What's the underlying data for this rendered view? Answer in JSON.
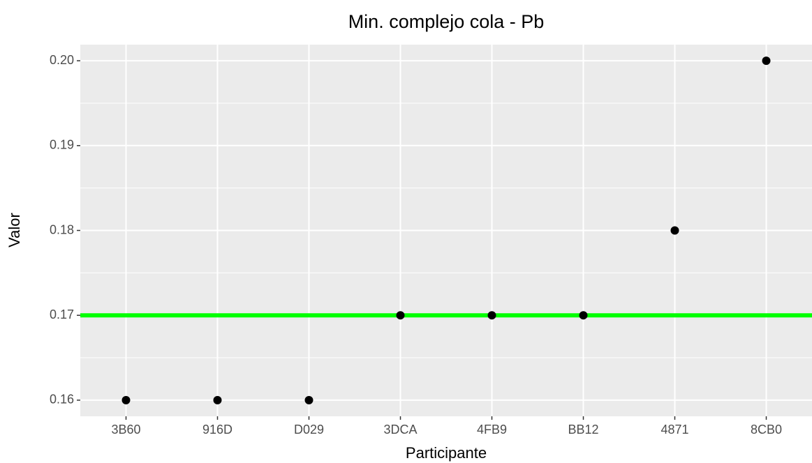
{
  "chart_data": {
    "type": "scatter",
    "title": "Min. complejo cola - Pb",
    "x_label": "Participante",
    "y_label": "Valor",
    "categories": [
      "3B60",
      "916D",
      "D029",
      "3DCA",
      "4FB9",
      "BB12",
      "4871",
      "8CB0"
    ],
    "values": [
      0.16,
      0.16,
      0.16,
      0.17,
      0.17,
      0.17,
      0.18,
      0.2
    ],
    "color": "#000000",
    "ylim": [
      0.1581,
      0.2019
    ],
    "yticks": [
      0.16,
      0.17,
      0.18,
      0.19,
      {
        "value": 0.2,
        "label": "0.20"
      }
    ],
    "grid": true,
    "hline": {
      "value": 0.17,
      "color": "#00ff00"
    }
  }
}
